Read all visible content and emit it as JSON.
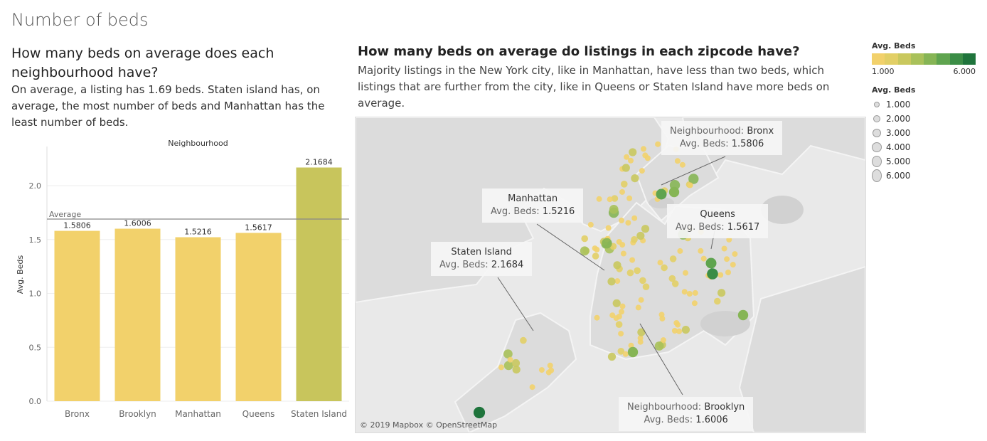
{
  "page_title": "Number of beds",
  "left_panel": {
    "question": "How many beds on average does each neighbourhood have?",
    "description": "On average, a listing has 1.69 beds. Staten island has, on average, the most number of beds and Manhattan has the least number of beds."
  },
  "right_panel": {
    "question": "How many beds on average do listings in each zipcode have?",
    "description": "Majority listings in the New York city, like in Manhattan, have less than two beds, which listings that are further from the city, like in Queens or Staten Island have more beds on average."
  },
  "chart_data": [
    {
      "type": "bar",
      "title": "Neighbourhood",
      "ylabel": "Avg. Beds",
      "categories": [
        "Bronx",
        "Brooklyn",
        "Manhattan",
        "Queens",
        "Staten Island"
      ],
      "values": [
        1.5806,
        1.6006,
        1.5216,
        1.5617,
        2.1684
      ],
      "value_labels": [
        "1.5806",
        "1.6006",
        "1.5216",
        "1.5617",
        "2.1684"
      ],
      "colors": [
        "#f2d16b",
        "#f2d16b",
        "#f2d16b",
        "#f2d16b",
        "#c8c55c"
      ],
      "ylim": [
        0,
        2.35
      ],
      "yticks": [
        0.0,
        0.5,
        1.0,
        1.5,
        2.0
      ],
      "ytick_labels": [
        "0.0",
        "0.5",
        "1.0",
        "1.5",
        "2.0"
      ],
      "reference_line": {
        "label": "Average",
        "value": 1.69
      },
      "grid": true
    }
  ],
  "map": {
    "credit": "© 2019 Mapbox © OpenStreetMap",
    "callouts": [
      {
        "label": "Neighbourhood:",
        "name": "Bronx",
        "metric": "Avg. Beds:",
        "value": "1.5806"
      },
      {
        "label": "",
        "name": "Manhattan",
        "metric": "Avg. Beds:",
        "value": "1.5216"
      },
      {
        "label": "",
        "name": "Queens",
        "metric": "Avg. Beds:",
        "value": "1.5617"
      },
      {
        "label": "",
        "name": "Staten Island",
        "metric": "Avg. Beds:",
        "value": "2.1684"
      },
      {
        "label": "Neighbourhood:",
        "name": "Brooklyn",
        "metric": "Avg. Beds:",
        "value": "1.6006"
      }
    ]
  },
  "color_legend": {
    "title": "Avg. Beds",
    "min_label": "1.000",
    "max_label": "6.000",
    "colors": [
      "#f2d16b",
      "#e2cf66",
      "#c9c85e",
      "#a9c15a",
      "#86b555",
      "#5fa44f",
      "#3b8d46",
      "#1f743c"
    ]
  },
  "size_legend": {
    "title": "Avg. Beds",
    "items": [
      "1.000",
      "2.000",
      "3.000",
      "4.000",
      "5.000",
      "6.000"
    ]
  }
}
